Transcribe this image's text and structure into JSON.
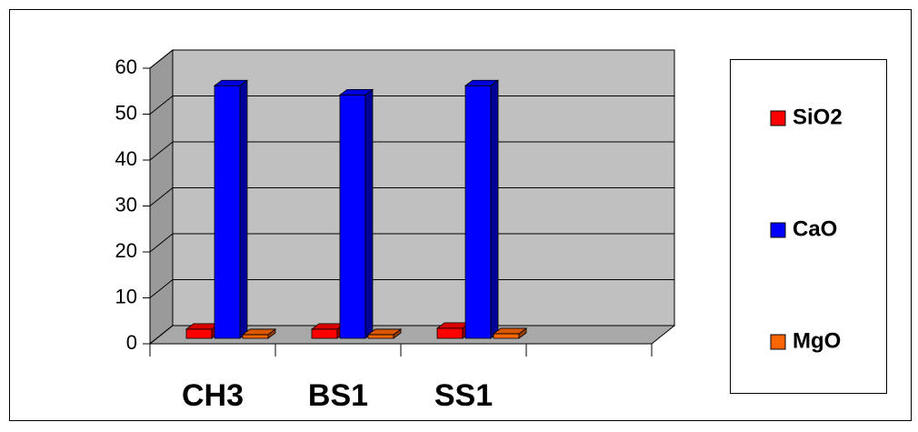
{
  "chart_data": {
    "type": "bar3d",
    "categories": [
      "CH3",
      "BS1",
      "SS1",
      null
    ],
    "series": [
      {
        "name": "SiO2",
        "color": "#ff0000",
        "values": [
          2,
          2,
          2.2,
          null
        ]
      },
      {
        "name": "CaO",
        "color": "#0000ff",
        "values": [
          55,
          53,
          55,
          null
        ]
      },
      {
        "name": "MgO",
        "color": "#ff6600",
        "values": [
          0.8,
          0.8,
          1,
          null
        ]
      }
    ],
    "ylim": [
      0,
      60
    ],
    "yticks": [
      0,
      10,
      20,
      30,
      40,
      50,
      60
    ],
    "grid": true,
    "legend": "right"
  }
}
